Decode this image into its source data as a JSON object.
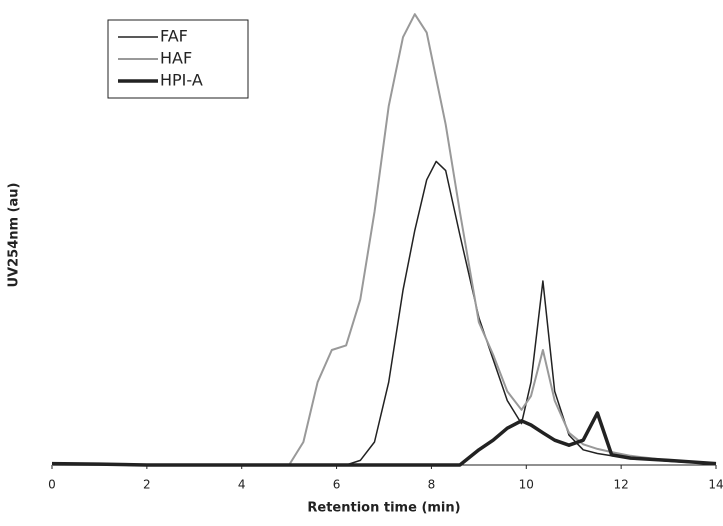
{
  "chart_data": {
    "type": "line",
    "x_label": "Retention time (min)",
    "y_label": "UV254nm (au)",
    "x": [
      0,
      1,
      2,
      3,
      4,
      5,
      5.3,
      5.6,
      5.9,
      6.2,
      6.5,
      6.8,
      7.1,
      7.4,
      7.65,
      7.9,
      8.1,
      8.3,
      8.6,
      9,
      9.3,
      9.6,
      9.9,
      10.1,
      10.35,
      10.6,
      10.9,
      11.2,
      11.5,
      11.8,
      12.2,
      13,
      14
    ],
    "series": [
      {
        "name": "FAF",
        "color": "#222222",
        "width": 1.5,
        "values": [
          0,
          0,
          0,
          0,
          0,
          0,
          0,
          0,
          0,
          0,
          1,
          5,
          18,
          38,
          51,
          62,
          66,
          64,
          50,
          32,
          23,
          14,
          9,
          18,
          40,
          16,
          6.5,
          3.3,
          2.5,
          2,
          1.5,
          0.8,
          0.2
        ]
      },
      {
        "name": "HAF",
        "color": "#999999",
        "width": 2,
        "values": [
          0,
          0,
          0,
          0,
          0,
          0,
          5,
          18,
          25,
          26,
          36,
          55,
          78,
          93,
          98,
          94,
          84,
          74,
          55,
          31,
          24,
          16,
          12,
          15,
          25,
          14,
          7,
          4.5,
          3.5,
          2.8,
          2,
          1,
          0.2
        ]
      },
      {
        "name": "HPI-A",
        "color": "#222222",
        "width": 3.5,
        "values": [
          0.3,
          0.2,
          0,
          0,
          0,
          0,
          0,
          0,
          0,
          0,
          0,
          0,
          0,
          0,
          0,
          0,
          0,
          0,
          0,
          3.3,
          5.4,
          8,
          9.6,
          8.7,
          7,
          5.4,
          4.3,
          5.4,
          11.3,
          2.2,
          1.5,
          1,
          0.3
        ]
      }
    ],
    "xlim": [
      0,
      14
    ],
    "xticks": [
      0,
      2,
      4,
      6,
      8,
      10,
      12,
      14
    ],
    "ylim": [
      0,
      100
    ]
  }
}
